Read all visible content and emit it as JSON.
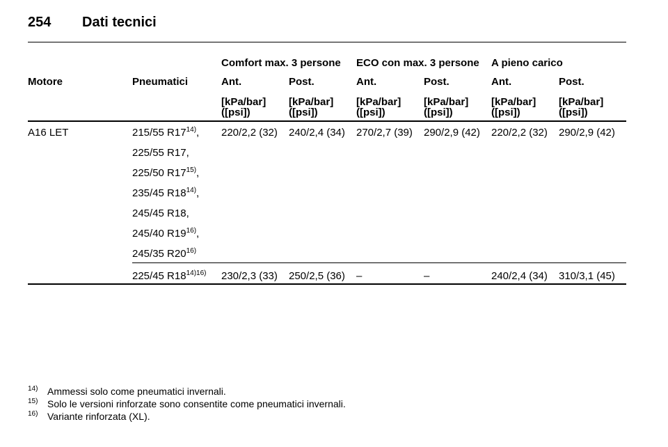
{
  "header": {
    "page_number": "254",
    "title": "Dati tecnici"
  },
  "table": {
    "groups": [
      "Comfort max. 3 persone",
      "ECO con max. 3 persone",
      "A pieno carico"
    ],
    "columns": [
      "Motore",
      "Pneumatici",
      "Ant.",
      "Post.",
      "Ant.",
      "Post.",
      "Ant.",
      "Post."
    ],
    "units": [
      {
        "pressure": "[kPa/bar]",
        "psi": "([psi])"
      },
      {
        "pressure": "[kPa/bar]",
        "psi": "([psi])"
      },
      {
        "pressure": "[kPa/bar]",
        "psi": "([psi])"
      },
      {
        "pressure": "[kPa/bar]",
        "psi": "([psi])"
      },
      {
        "pressure": "[kPa/bar]",
        "psi": "([psi])"
      },
      {
        "pressure": "[kPa/bar]",
        "psi": "([psi])"
      }
    ],
    "rows": [
      {
        "engine": "A16 LET",
        "tyres": [
          {
            "size": "215/55 R17",
            "note": "14)",
            "suffix": ","
          },
          {
            "size": "225/55 R17,"
          },
          {
            "size": "225/50 R17",
            "note": "15)",
            "suffix": ","
          },
          {
            "size": "235/45 R18",
            "note": "14)",
            "suffix": ","
          },
          {
            "size": "245/45 R18,"
          },
          {
            "size": "245/40 R19",
            "note": "16)",
            "suffix": ","
          },
          {
            "size": "245/35 R20",
            "note": "16)"
          }
        ],
        "values": [
          "220/2,2 (32)",
          "240/2,4 (34)",
          "270/2,7 (39)",
          "290/2,9 (42)",
          "220/2,2 (32)",
          "290/2,9 (42)"
        ]
      },
      {
        "tyres": [
          {
            "size": "225/45 R18",
            "note": "14)16)"
          }
        ],
        "values": [
          "230/2,3 (33)",
          "250/2,5 (36)",
          "–",
          "–",
          "240/2,4 (34)",
          "310/3,1 (45)"
        ]
      }
    ]
  },
  "footnotes": [
    {
      "marker": "14)",
      "text": "Ammessi solo come pneumatici invernali."
    },
    {
      "marker": "15)",
      "text": "Solo le versioni rinforzate sono consentite come pneumatici invernali."
    },
    {
      "marker": "16)",
      "text": "Variante rinforzata (XL)."
    }
  ]
}
